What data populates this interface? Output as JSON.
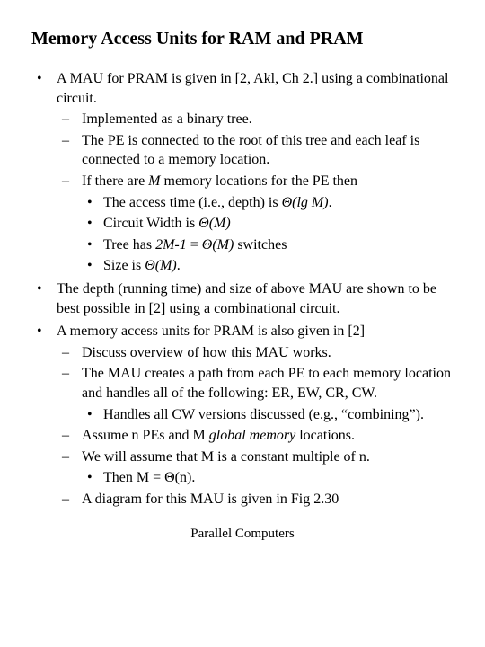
{
  "title": "Memory Access Units for RAM and PRAM",
  "bullets": {
    "b1": {
      "text_a": "A MAU for PRAM is given in [2, Akl, Ch 2.] using a combinational circuit.",
      "d1": "Implemented as a binary tree.",
      "d2": "The PE is connected to the root of this tree and each leaf is connected to a memory location.",
      "d3_a": "If there are ",
      "d3_m": "M",
      "d3_b": " memory locations for the  PE then",
      "d3_s1_a": "The access time (i.e., depth) is  ",
      "d3_s1_b": "Θ(lg M)",
      "d3_s1_c": ".",
      "d3_s2_a": "Circuit Width is  ",
      "d3_s2_b": "Θ(M)",
      "d3_s3_a": "Tree has ",
      "d3_s3_b": "2M-1",
      "d3_s3_c": " =  ",
      "d3_s3_d": "Θ(M)",
      "d3_s3_e": " switches",
      "d3_s4_a": "Size is  ",
      "d3_s4_b": "Θ(M)",
      "d3_s4_c": "."
    },
    "b2": "The depth (running time) and size of above MAU are shown to be best possible in [2] using a combinational circuit.",
    "b3": {
      "text": "A memory access units for PRAM is also given in [2]",
      "d1": "Discuss overview of how this MAU works.",
      "d2": "The MAU creates a path from each PE to each memory location and handles all of the following: ER, EW, CR, CW.",
      "d2_s1": "Handles all CW versions discussed (e.g., “combining”).",
      "d3_a": "Assume n PEs and M ",
      "d3_b": "global memory",
      "d3_c": " locations.",
      "d4": "We will assume that M is a constant multiple of n.",
      "d4_s1": "Then M = Θ(n).",
      "d5": "A diagram for this MAU is given in Fig 2.30"
    }
  },
  "footer": "Parallel Computers"
}
